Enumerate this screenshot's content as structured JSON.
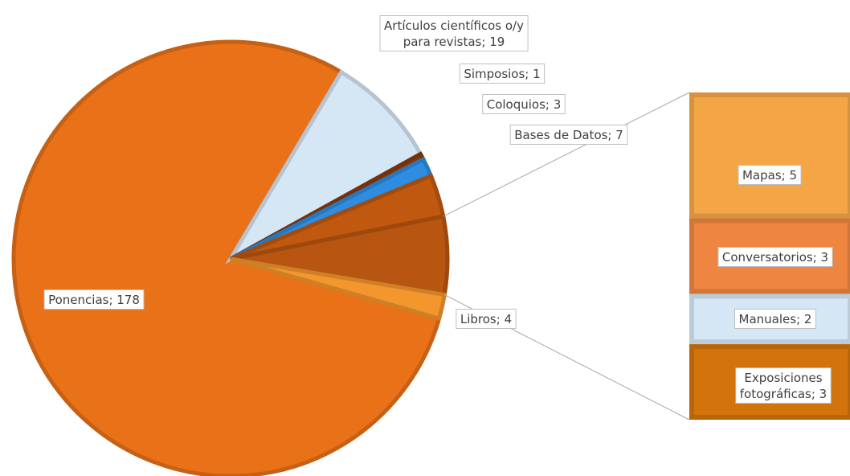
{
  "chart_data": {
    "type": "bar-of-pie",
    "values": [
      178,
      19,
      1,
      3,
      7,
      4
    ],
    "value_labels": [
      "Ponencias; 178",
      "Artículos científicos o/y\npara revistas; 19",
      "Simposios; 1",
      "Coloquios; 3",
      "Bases de Datos; 7",
      "Libros; 4"
    ],
    "colors": [
      "#e97118",
      "#d5e7f5",
      "#8a3a0a",
      "#2e8de0",
      "#c05810",
      "#f3962e"
    ],
    "bar": {
      "values": [
        5,
        3,
        2,
        3
      ],
      "value_labels": [
        "Mapas; 5",
        "Conversatorios; 3",
        "Manuales; 2",
        "Exposiciones\nfotográficas; 3"
      ],
      "colors": [
        "#f4a646",
        "#ee8540",
        "#d5e7f5",
        "#d2730b"
      ]
    }
  }
}
